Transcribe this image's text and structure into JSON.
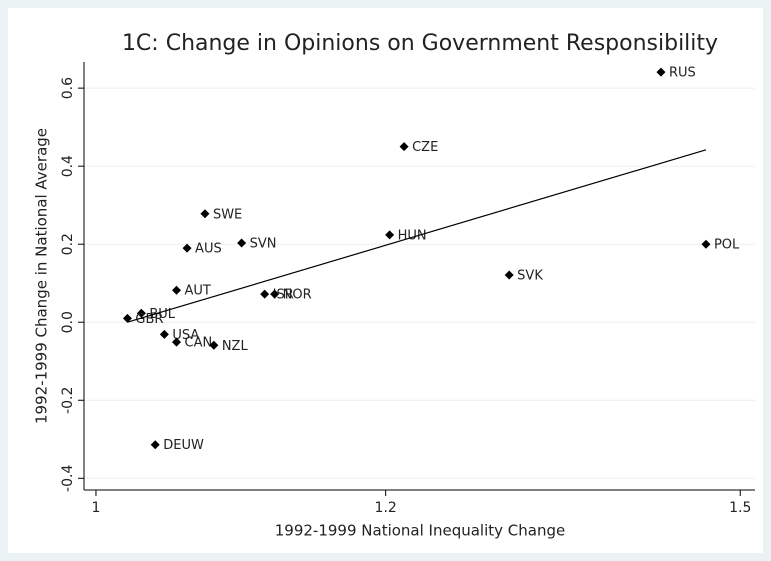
{
  "chart_data": {
    "type": "scatter",
    "title": "1C: Change in Opinions on Government Responsibility",
    "x_label": "1992-1999 National Inequality Change",
    "y_label": "1992-1999 Change in National Average",
    "xscale": "log",
    "xlim": [
      0.9925,
      1.514
    ],
    "xticks": [
      1,
      1.2,
      1.5
    ],
    "ylim": [
      -0.43,
      0.667
    ],
    "yticks": [
      {
        "value": -0.4,
        "label": "-0.4"
      },
      {
        "value": -0.2,
        "label": "-0.2"
      },
      {
        "value": 0,
        "label": "0.0"
      },
      {
        "value": 0.2,
        "label": "0.2"
      },
      {
        "value": 0.4,
        "label": "0.4"
      },
      {
        "value": 0.6,
        "label": "0.6"
      }
    ],
    "grid": true,
    "color": "#000000",
    "labels": [
      "RUS",
      "POL",
      "CZE",
      "HUN",
      "SVK",
      "SWE",
      "AUS",
      "SVN",
      "AUT",
      "ISR",
      "NOR",
      "BUL",
      "GBR",
      "USA",
      "CAN",
      "NZL",
      "DEUW"
    ],
    "x": [
      1.427,
      1.468,
      1.214,
      1.203,
      1.297,
      1.071,
      1.059,
      1.096,
      1.052,
      1.112,
      1.119,
      1.029,
      1.02,
      1.044,
      1.052,
      1.077,
      1.038
    ],
    "values": [
      0.641,
      0.2,
      0.45,
      0.224,
      0.121,
      0.278,
      0.19,
      0.203,
      0.082,
      0.072,
      0.072,
      0.023,
      0.01,
      -0.031,
      -0.051,
      -0.059,
      -0.314
    ],
    "fit": {
      "x": [
        1.02,
        1.468
      ],
      "values": [
        0.0,
        0.442
      ]
    }
  }
}
